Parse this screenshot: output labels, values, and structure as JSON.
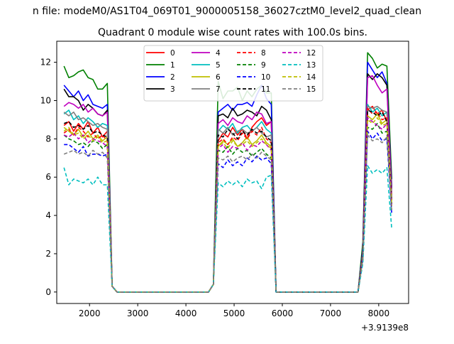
{
  "suptitle": "n file: modeM0/AS1T04_069T01_9000005158_36027cztM0_level2_quad_clean",
  "chart_data": {
    "type": "line",
    "title": "Quadrant 0 module wise count rates with 100.0s bins.",
    "xlabel": "",
    "ylabel": "",
    "x_offset_label": "+3.9139e8",
    "xlim": [
      1320,
      8620
    ],
    "ylim": [
      -0.6,
      13.1
    ],
    "xticks": [
      2000,
      3000,
      4000,
      5000,
      6000,
      7000,
      8000
    ],
    "xtick_labels": [
      "2000",
      "3000",
      "4000",
      "5000",
      "6000",
      "7000",
      "8000"
    ],
    "yticks": [
      0,
      2,
      4,
      6,
      8,
      10,
      12
    ],
    "ytick_labels": [
      "0",
      "2",
      "4",
      "6",
      "8",
      "10",
      "12"
    ],
    "grid": false,
    "legend": {
      "placement": "top-center",
      "columns": 4
    },
    "x": [
      1470,
      1570,
      1670,
      1770,
      1870,
      1970,
      2070,
      2170,
      2270,
      2370,
      2470,
      2570,
      4470,
      4570,
      4670,
      4770,
      4870,
      4970,
      5070,
      5170,
      5270,
      5370,
      5470,
      5570,
      5670,
      5770,
      5870,
      7570,
      7670,
      7770,
      7870,
      7970,
      8070,
      8170,
      8270
    ],
    "series": [
      {
        "name": "0",
        "color": "#ff0000",
        "dash": "solid",
        "values": [
          8.7,
          8.9,
          8.4,
          8.8,
          8.5,
          8.9,
          8.3,
          8.6,
          8.1,
          8.4,
          0.3,
          0,
          0,
          0.4,
          7.9,
          8.3,
          8.1,
          8.6,
          8.2,
          8.5,
          8.0,
          8.6,
          8.9,
          9.1,
          8.7,
          8.9,
          0,
          0,
          2.0,
          9.5,
          9.7,
          9.3,
          9.5,
          8.9,
          5.0
        ]
      },
      {
        "name": "1",
        "color": "#008000",
        "dash": "solid",
        "values": [
          11.8,
          11.2,
          11.3,
          11.5,
          11.6,
          11.2,
          11.1,
          10.6,
          10.6,
          10.9,
          0.3,
          0,
          0,
          0.4,
          11.0,
          10.1,
          10.5,
          10.5,
          10.7,
          10.0,
          10.5,
          10.2,
          10.6,
          10.8,
          10.4,
          10.4,
          0,
          0,
          2.6,
          12.5,
          12.2,
          11.7,
          11.9,
          11.8,
          5.9
        ]
      },
      {
        "name": "2",
        "color": "#0000ff",
        "dash": "solid",
        "values": [
          10.8,
          10.5,
          10.2,
          10.5,
          10.0,
          10.3,
          9.8,
          9.7,
          9.6,
          9.8,
          0.3,
          0,
          0,
          0.4,
          9.4,
          9.6,
          9.8,
          9.5,
          9.8,
          9.8,
          9.9,
          9.7,
          10.3,
          10.8,
          10.1,
          9.8,
          0,
          0,
          2.3,
          12.0,
          11.6,
          11.2,
          11.5,
          10.9,
          5.5
        ]
      },
      {
        "name": "3",
        "color": "#000000",
        "dash": "solid",
        "values": [
          10.6,
          10.2,
          10.2,
          10.0,
          9.5,
          9.8,
          9.6,
          9.3,
          9.2,
          9.5,
          0.3,
          0,
          0,
          0.4,
          9.2,
          9.3,
          9.1,
          9.6,
          9.2,
          9.3,
          9.5,
          9.4,
          9.2,
          9.7,
          9.5,
          9.0,
          0,
          0,
          2.2,
          11.4,
          11.1,
          11.4,
          11.2,
          10.8,
          5.4
        ]
      },
      {
        "name": "4",
        "color": "#bf00bf",
        "dash": "solid",
        "values": [
          9.7,
          9.9,
          9.8,
          9.6,
          9.8,
          9.4,
          9.6,
          9.3,
          9.2,
          9.4,
          0.3,
          0,
          0,
          0.4,
          8.8,
          9.0,
          8.7,
          9.1,
          8.9,
          8.8,
          9.2,
          9.0,
          9.4,
          9.3,
          8.8,
          8.9,
          0,
          0,
          2.1,
          11.2,
          11.3,
          10.8,
          10.4,
          10.6,
          5.2
        ]
      },
      {
        "name": "5",
        "color": "#00bfbf",
        "dash": "solid",
        "values": [
          9.3,
          9.5,
          9.0,
          9.2,
          8.8,
          9.1,
          8.9,
          8.6,
          8.8,
          8.7,
          0.3,
          0,
          0,
          0.4,
          8.4,
          8.7,
          8.5,
          8.8,
          8.3,
          8.6,
          8.7,
          8.4,
          8.6,
          8.9,
          8.5,
          8.3,
          0,
          0,
          2.0,
          9.8,
          9.4,
          9.6,
          9.2,
          9.4,
          4.9
        ]
      },
      {
        "name": "6",
        "color": "#bfbf00",
        "dash": "solid",
        "values": [
          8.6,
          8.4,
          8.2,
          8.5,
          8.1,
          8.4,
          8.0,
          8.2,
          7.9,
          8.1,
          0.3,
          0,
          0,
          0.4,
          7.6,
          7.9,
          7.7,
          8.0,
          7.6,
          7.8,
          8.1,
          7.7,
          7.9,
          8.2,
          7.8,
          7.6,
          0,
          0,
          1.9,
          9.2,
          9.0,
          9.3,
          8.8,
          9.0,
          4.6
        ]
      },
      {
        "name": "7",
        "color": "#808080",
        "dash": "solid",
        "values": [
          9.4,
          9.2,
          9.4,
          9.0,
          9.1,
          8.9,
          8.7,
          8.8,
          8.6,
          8.5,
          0.3,
          0,
          0,
          0.4,
          8.5,
          8.3,
          8.6,
          8.2,
          8.4,
          8.5,
          8.3,
          8.4,
          8.6,
          8.3,
          8.1,
          8.2,
          0,
          0,
          2.0,
          9.7,
          9.6,
          9.7,
          9.5,
          9.4,
          4.8
        ]
      },
      {
        "name": "8",
        "color": "#ff0000",
        "dash": "dashed",
        "values": [
          8.3,
          8.5,
          8.2,
          8.6,
          8.4,
          8.1,
          8.3,
          8.0,
          8.2,
          7.9,
          0.3,
          0,
          0,
          0.4,
          7.8,
          8.0,
          7.7,
          8.1,
          7.9,
          8.3,
          8.0,
          8.4,
          8.2,
          8.6,
          8.0,
          7.8,
          0,
          0,
          1.9,
          9.6,
          9.3,
          9.4,
          9.0,
          9.1,
          4.7
        ]
      },
      {
        "name": "9",
        "color": "#008000",
        "dash": "dashed",
        "values": [
          8.2,
          8.0,
          7.9,
          7.7,
          7.8,
          7.6,
          7.9,
          7.8,
          7.5,
          7.7,
          0.3,
          0,
          0,
          0.4,
          7.4,
          7.3,
          7.6,
          7.2,
          7.5,
          7.3,
          7.4,
          7.1,
          7.3,
          7.5,
          7.2,
          7.0,
          0,
          0,
          1.8,
          8.6,
          8.5,
          8.8,
          8.3,
          8.4,
          4.3
        ]
      },
      {
        "name": "10",
        "color": "#0000ff",
        "dash": "dashed",
        "values": [
          7.7,
          7.7,
          7.5,
          7.3,
          7.6,
          7.1,
          7.2,
          7.2,
          7.1,
          7.2,
          0.3,
          0,
          0,
          0.4,
          6.7,
          6.5,
          6.9,
          6.6,
          6.8,
          6.6,
          7.0,
          6.8,
          7.1,
          6.9,
          7.0,
          6.7,
          0,
          0,
          1.7,
          8.4,
          8.0,
          8.3,
          7.9,
          8.0,
          4.1
        ]
      },
      {
        "name": "11",
        "color": "#000000",
        "dash": "dashed",
        "values": [
          8.8,
          8.9,
          8.6,
          8.7,
          8.5,
          8.7,
          8.3,
          8.4,
          8.2,
          8.1,
          0.3,
          0,
          0,
          0.4,
          8.2,
          8.1,
          8.5,
          8.3,
          8.0,
          8.4,
          8.2,
          8.5,
          8.3,
          8.4,
          8.1,
          7.9,
          0,
          0,
          1.9,
          9.5,
          9.4,
          9.2,
          9.4,
          8.9,
          4.6
        ]
      },
      {
        "name": "12",
        "color": "#bf00bf",
        "dash": "dashed",
        "values": [
          8.2,
          8.1,
          8.3,
          8.0,
          8.2,
          7.8,
          8.0,
          7.9,
          7.8,
          7.6,
          0.3,
          0,
          0,
          0.4,
          7.5,
          7.7,
          7.3,
          7.6,
          7.5,
          7.8,
          7.4,
          7.7,
          7.6,
          7.9,
          7.7,
          7.4,
          0,
          0,
          1.8,
          9.1,
          8.9,
          8.7,
          8.5,
          8.8,
          4.5
        ]
      },
      {
        "name": "13",
        "color": "#00bfbf",
        "dash": "dashed",
        "values": [
          6.5,
          5.6,
          5.9,
          5.8,
          5.7,
          5.9,
          5.6,
          6.0,
          5.6,
          5.6,
          0.3,
          0,
          0,
          0.4,
          5.7,
          5.5,
          5.8,
          5.6,
          5.8,
          5.5,
          5.9,
          5.7,
          5.8,
          5.4,
          6.0,
          6.1,
          0,
          0,
          1.5,
          6.6,
          6.2,
          6.4,
          6.2,
          6.5,
          3.3
        ]
      },
      {
        "name": "14",
        "color": "#bfbf00",
        "dash": "dashed",
        "values": [
          8.4,
          8.6,
          8.2,
          8.3,
          8.0,
          8.2,
          7.9,
          8.1,
          7.8,
          7.9,
          0.3,
          0,
          0,
          0.4,
          7.6,
          7.8,
          7.5,
          7.9,
          7.6,
          7.7,
          7.9,
          7.6,
          7.8,
          8.0,
          7.7,
          7.5,
          0,
          0,
          1.8,
          9.0,
          8.8,
          9.1,
          8.7,
          8.8,
          4.5
        ]
      },
      {
        "name": "15",
        "color": "#808080",
        "dash": "dashed",
        "values": [
          7.2,
          7.3,
          7.4,
          7.2,
          7.3,
          7.1,
          7.4,
          7.2,
          7.3,
          7.0,
          0.3,
          0,
          0,
          0.4,
          7.0,
          6.9,
          7.1,
          6.8,
          7.0,
          7.1,
          6.9,
          7.2,
          7.0,
          7.3,
          7.1,
          6.9,
          0,
          0,
          1.7,
          8.2,
          7.9,
          8.0,
          7.8,
          8.1,
          4.2
        ]
      }
    ]
  }
}
